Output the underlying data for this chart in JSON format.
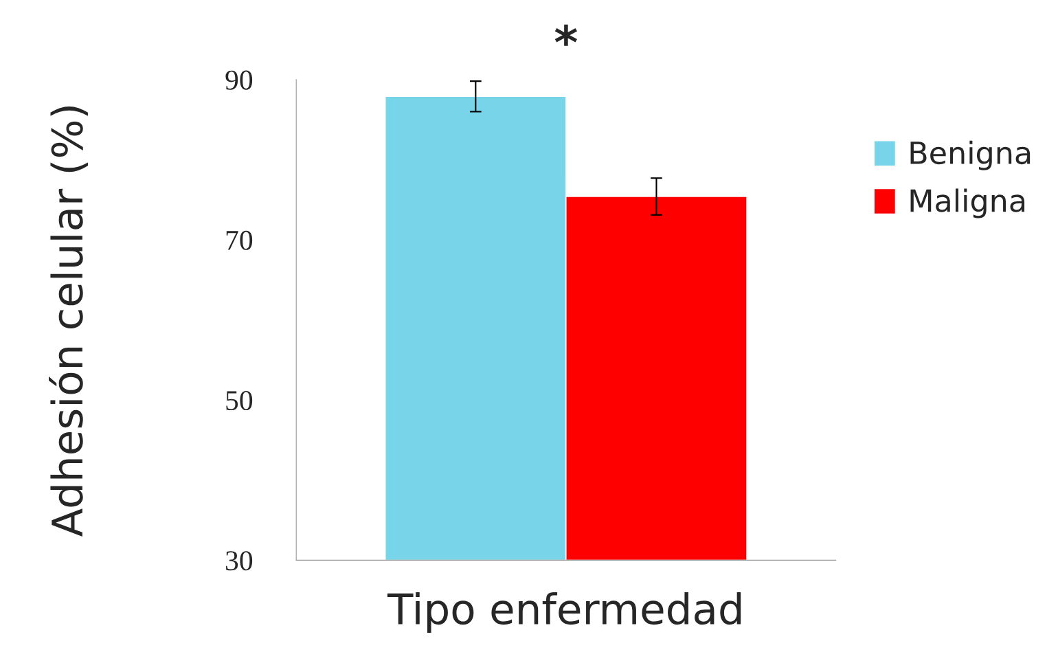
{
  "chart_data": {
    "type": "bar",
    "xlabel": "Tipo enfermedad",
    "ylabel": "Adhesión celular (%)",
    "categories": [
      null
    ],
    "series": [
      {
        "name": "Benigna",
        "color": "#78d5e9",
        "values": [
          87.9
        ],
        "errors": [
          1.9
        ]
      },
      {
        "name": "Maligna",
        "color": "#ff0000",
        "values": [
          75.4
        ],
        "errors": [
          2.3
        ]
      }
    ],
    "ylim": [
      30,
      90
    ],
    "yticks": [
      30,
      50,
      70,
      90
    ],
    "grid": false,
    "legend": "right",
    "annotations": [
      "*"
    ]
  }
}
